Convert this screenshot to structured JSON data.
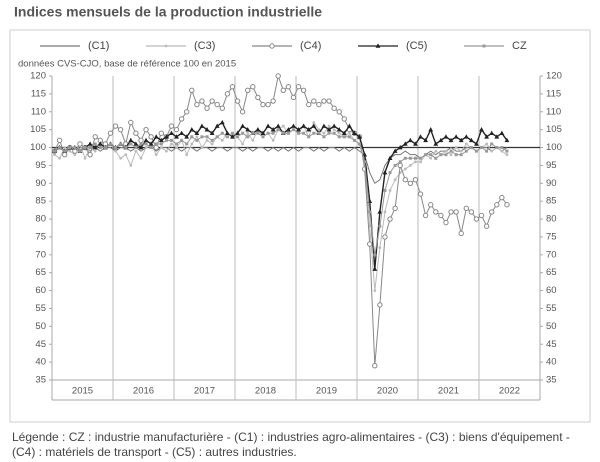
{
  "chart_data": {
    "type": "line",
    "title": "Indices mensuels de la production industrielle",
    "subtitle": "données CVS-CJO, base de référence 100 en 2015",
    "footnote": "Légende : CZ : industrie manufacturière - (C1) : industries agro-alimentaires - (C3) : biens d'équipement - (C4) : matériels de transport - (C5) : autres industries.",
    "categories": [
      null,
      null,
      null,
      null,
      null,
      null,
      "2015",
      null,
      null,
      null,
      null,
      null,
      null,
      null,
      null,
      null,
      null,
      null,
      "2016",
      null,
      null,
      null,
      null,
      null,
      null,
      null,
      null,
      null,
      null,
      null,
      "2017",
      null,
      null,
      null,
      null,
      null,
      null,
      null,
      null,
      null,
      null,
      null,
      "2018",
      null,
      null,
      null,
      null,
      null,
      null,
      null,
      null,
      null,
      null,
      null,
      "2019",
      null,
      null,
      null,
      null,
      null,
      null,
      null,
      null,
      null,
      null,
      null,
      "2020",
      null,
      null,
      null,
      null,
      null,
      null,
      null,
      null,
      null,
      null,
      null,
      "2021",
      null,
      null,
      null,
      null,
      null,
      null,
      null,
      null,
      null,
      null,
      null,
      "2022",
      null,
      null,
      null,
      null,
      null
    ],
    "ylim": [
      35,
      120
    ],
    "yticks": [
      35,
      40,
      45,
      50,
      55,
      60,
      65,
      70,
      75,
      80,
      85,
      90,
      95,
      100,
      105,
      110,
      115,
      120
    ],
    "reference_line": 100,
    "series": [
      {
        "name": "(C1)",
        "color": "#777777",
        "marker": "none",
        "values": [
          99,
          100,
          99,
          100,
          99,
          100,
          100,
          99,
          100,
          99,
          100,
          100,
          99,
          100,
          100,
          99,
          100,
          99,
          100,
          100,
          99,
          100,
          100,
          99,
          100,
          99,
          100,
          100,
          99,
          100,
          100,
          99,
          100,
          100,
          99,
          100,
          100,
          99,
          100,
          99,
          100,
          100,
          99,
          100,
          99,
          100,
          99,
          100,
          99,
          100,
          100,
          99,
          100,
          99,
          100,
          100,
          99,
          100,
          99,
          100,
          99,
          98,
          93,
          90,
          91,
          95,
          97,
          98,
          98,
          99,
          98,
          98,
          97,
          98,
          99,
          98,
          99,
          99,
          100,
          99,
          99,
          100,
          100,
          99,
          100,
          100,
          99,
          100,
          99,
          100,
          null,
          null,
          null,
          null,
          null,
          null
        ]
      },
      {
        "name": "(C3)",
        "color": "#bbbbbb",
        "marker": "dot",
        "values": [
          98,
          97,
          100,
          99,
          98,
          101,
          97,
          100,
          99,
          102,
          100,
          101,
          99,
          97,
          98,
          95,
          99,
          97,
          100,
          101,
          98,
          100,
          99,
          101,
          100,
          102,
          98,
          101,
          103,
          100,
          102,
          101,
          103,
          102,
          104,
          103,
          103,
          101,
          104,
          102,
          105,
          103,
          104,
          102,
          105,
          106,
          104,
          105,
          104,
          106,
          103,
          107,
          105,
          104,
          106,
          105,
          104,
          103,
          104,
          102,
          101,
          96,
          78,
          60,
          72,
          82,
          88,
          91,
          93,
          94,
          95,
          96,
          96,
          98,
          97,
          99,
          98,
          99,
          98,
          100,
          99,
          101,
          100,
          99,
          100,
          101,
          99,
          100,
          99,
          98,
          null,
          null,
          null,
          null,
          null,
          null
        ]
      },
      {
        "name": "(C4)",
        "color": "#888888",
        "marker": "circle",
        "values": [
          99,
          102,
          98,
          100,
          99,
          101,
          100,
          98,
          103,
          102,
          101,
          104,
          106,
          105,
          101,
          107,
          104,
          102,
          105,
          103,
          100,
          104,
          103,
          106,
          105,
          108,
          110,
          116,
          112,
          113,
          111,
          113,
          112,
          111,
          115,
          117,
          113,
          110,
          116,
          117,
          114,
          112,
          112,
          113,
          120,
          116,
          117,
          114,
          117,
          116,
          112,
          113,
          112,
          113,
          113,
          111,
          110,
          108,
          105,
          104,
          103,
          94,
          73,
          39,
          56,
          75,
          80,
          83,
          95,
          91,
          90,
          91,
          87,
          81,
          84,
          82,
          81,
          79,
          82,
          82,
          76,
          83,
          82,
          80,
          81,
          78,
          82,
          84,
          86,
          84,
          null,
          null,
          null,
          null,
          null,
          null
        ]
      },
      {
        "name": "(C5)",
        "color": "#222222",
        "marker": "triangle",
        "values": [
          99,
          100,
          99,
          100,
          100,
          99,
          100,
          101,
          100,
          101,
          100,
          101,
          100,
          101,
          100,
          102,
          101,
          100,
          102,
          101,
          103,
          102,
          103,
          104,
          103,
          104,
          103,
          105,
          104,
          106,
          105,
          104,
          106,
          107,
          104,
          103,
          104,
          106,
          105,
          104,
          105,
          104,
          106,
          105,
          106,
          104,
          105,
          106,
          105,
          106,
          105,
          106,
          104,
          106,
          105,
          106,
          105,
          104,
          106,
          104,
          103,
          98,
          85,
          66,
          82,
          93,
          97,
          99,
          100,
          101,
          102,
          101,
          103,
          102,
          105,
          101,
          102,
          103,
          102,
          103,
          102,
          103,
          102,
          101,
          105,
          103,
          104,
          103,
          104,
          102,
          null,
          null,
          null,
          null,
          null,
          null
        ]
      },
      {
        "name": "CZ",
        "color": "#999999",
        "marker": "square",
        "values": [
          99,
          100,
          99,
          100,
          100,
          99,
          100,
          100,
          101,
          100,
          100,
          101,
          100,
          101,
          100,
          101,
          100,
          101,
          101,
          100,
          101,
          101,
          102,
          102,
          101,
          102,
          101,
          103,
          102,
          103,
          103,
          102,
          103,
          104,
          103,
          104,
          103,
          104,
          103,
          104,
          104,
          103,
          104,
          104,
          105,
          104,
          104,
          105,
          104,
          104,
          103,
          104,
          104,
          103,
          104,
          104,
          103,
          103,
          103,
          102,
          101,
          96,
          82,
          70,
          78,
          88,
          93,
          95,
          96,
          97,
          97,
          97,
          97,
          98,
          98,
          97,
          98,
          98,
          99,
          98,
          98,
          99,
          100,
          99,
          100,
          99,
          101,
          100,
          100,
          99,
          null,
          null,
          null,
          null,
          null,
          null
        ]
      }
    ]
  }
}
